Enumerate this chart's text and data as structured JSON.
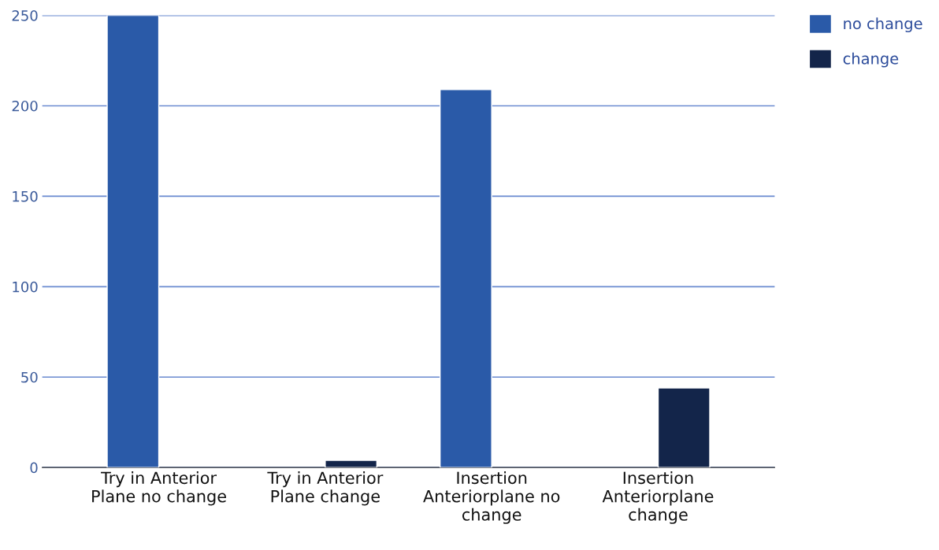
{
  "chart_data": {
    "type": "bar",
    "categories": [
      "Try in Anterior\nPlane no change",
      "Try in Anterior\nPlane change",
      "Insertion\nAnteriorplane no\nchange",
      "Insertion\nAnteriorplane\nchange"
    ],
    "series": [
      {
        "name": "no change",
        "color": "#2a5aa8",
        "values": [
          250,
          null,
          209,
          null
        ]
      },
      {
        "name": "change",
        "color": "#13254a",
        "values": [
          null,
          4,
          null,
          44
        ]
      }
    ],
    "ylim": [
      0,
      250
    ],
    "yticks": [
      0,
      50,
      100,
      150,
      200,
      250
    ],
    "grid": "y",
    "legend": "top right"
  }
}
